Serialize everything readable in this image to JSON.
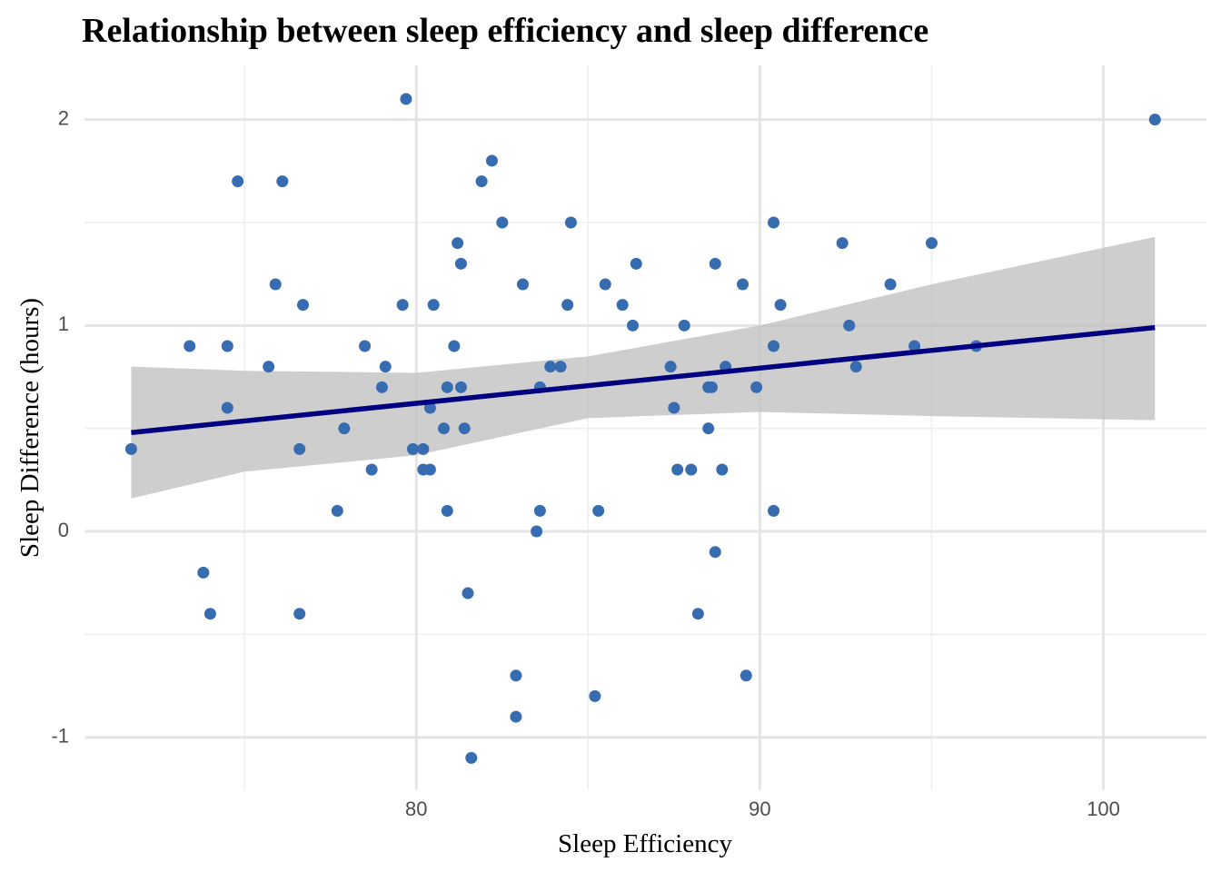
{
  "chart_data": {
    "type": "scatter",
    "title": "Relationship between sleep efficiency and sleep difference",
    "x_label": "Sleep Efficiency",
    "y_label": "Sleep Difference (hours)",
    "x": [
      71.7,
      73.4,
      73.8,
      74.0,
      74.5,
      74.5,
      74.8,
      75.7,
      75.9,
      76.1,
      76.6,
      76.6,
      76.7,
      77.7,
      77.9,
      78.5,
      78.7,
      79.0,
      79.1,
      79.6,
      79.7,
      79.9,
      80.2,
      80.2,
      80.4,
      80.4,
      80.5,
      80.8,
      80.9,
      80.9,
      81.1,
      81.2,
      81.3,
      81.3,
      81.4,
      81.5,
      81.6,
      81.9,
      82.2,
      82.5,
      82.9,
      82.9,
      83.1,
      83.5,
      83.6,
      83.6,
      83.9,
      84.2,
      84.4,
      84.5,
      85.2,
      85.3,
      85.5,
      86.0,
      86.3,
      86.4,
      87.4,
      87.5,
      87.6,
      87.8,
      88.0,
      88.2,
      88.5,
      88.5,
      88.6,
      88.7,
      88.7,
      88.9,
      89.0,
      89.5,
      89.6,
      89.9,
      90.4,
      90.4,
      90.4,
      90.6,
      92.4,
      92.6,
      92.8,
      93.8,
      94.5,
      95.0,
      96.3,
      101.5
    ],
    "values": [
      0.4,
      0.9,
      -0.2,
      -0.4,
      0.9,
      0.6,
      1.7,
      0.8,
      1.2,
      1.7,
      0.4,
      -0.4,
      1.1,
      0.1,
      0.5,
      0.9,
      0.3,
      0.7,
      0.8,
      1.1,
      2.1,
      0.4,
      0.4,
      0.3,
      0.3,
      0.6,
      1.1,
      0.5,
      0.7,
      0.1,
      0.9,
      1.4,
      1.3,
      0.7,
      0.5,
      -0.3,
      -1.1,
      1.7,
      1.8,
      1.5,
      -0.7,
      -0.9,
      1.2,
      0.0,
      0.7,
      0.1,
      0.8,
      0.8,
      1.1,
      1.5,
      -0.8,
      0.1,
      1.2,
      1.1,
      1.0,
      1.3,
      0.8,
      0.6,
      0.3,
      1.0,
      0.3,
      -0.4,
      0.5,
      0.7,
      0.7,
      -0.1,
      1.3,
      0.3,
      0.8,
      1.2,
      -0.7,
      0.7,
      1.5,
      0.9,
      0.1,
      1.1,
      1.4,
      1.0,
      0.8,
      1.2,
      0.9,
      1.4,
      0.9,
      2.0
    ],
    "color": "#386cb0",
    "fit": {
      "x": [
        71.7,
        101.5
      ],
      "values": [
        0.48,
        0.99
      ],
      "color": "#000080"
    },
    "band": {
      "x": [
        71.7,
        75,
        80,
        85,
        90,
        95,
        101.5
      ],
      "lower": [
        0.16,
        0.29,
        0.37,
        0.55,
        0.58,
        0.56,
        0.54
      ],
      "upper": [
        0.8,
        0.78,
        0.77,
        0.85,
        1.0,
        1.2,
        1.43
      ],
      "color": "#bdbdbd"
    },
    "xlim": [
      70.34,
      103.0
    ],
    "ylim": [
      -1.257,
      2.263
    ],
    "xticks": [
      80,
      90,
      100
    ],
    "yticks": [
      -1,
      0,
      1,
      2
    ],
    "grid": true
  }
}
